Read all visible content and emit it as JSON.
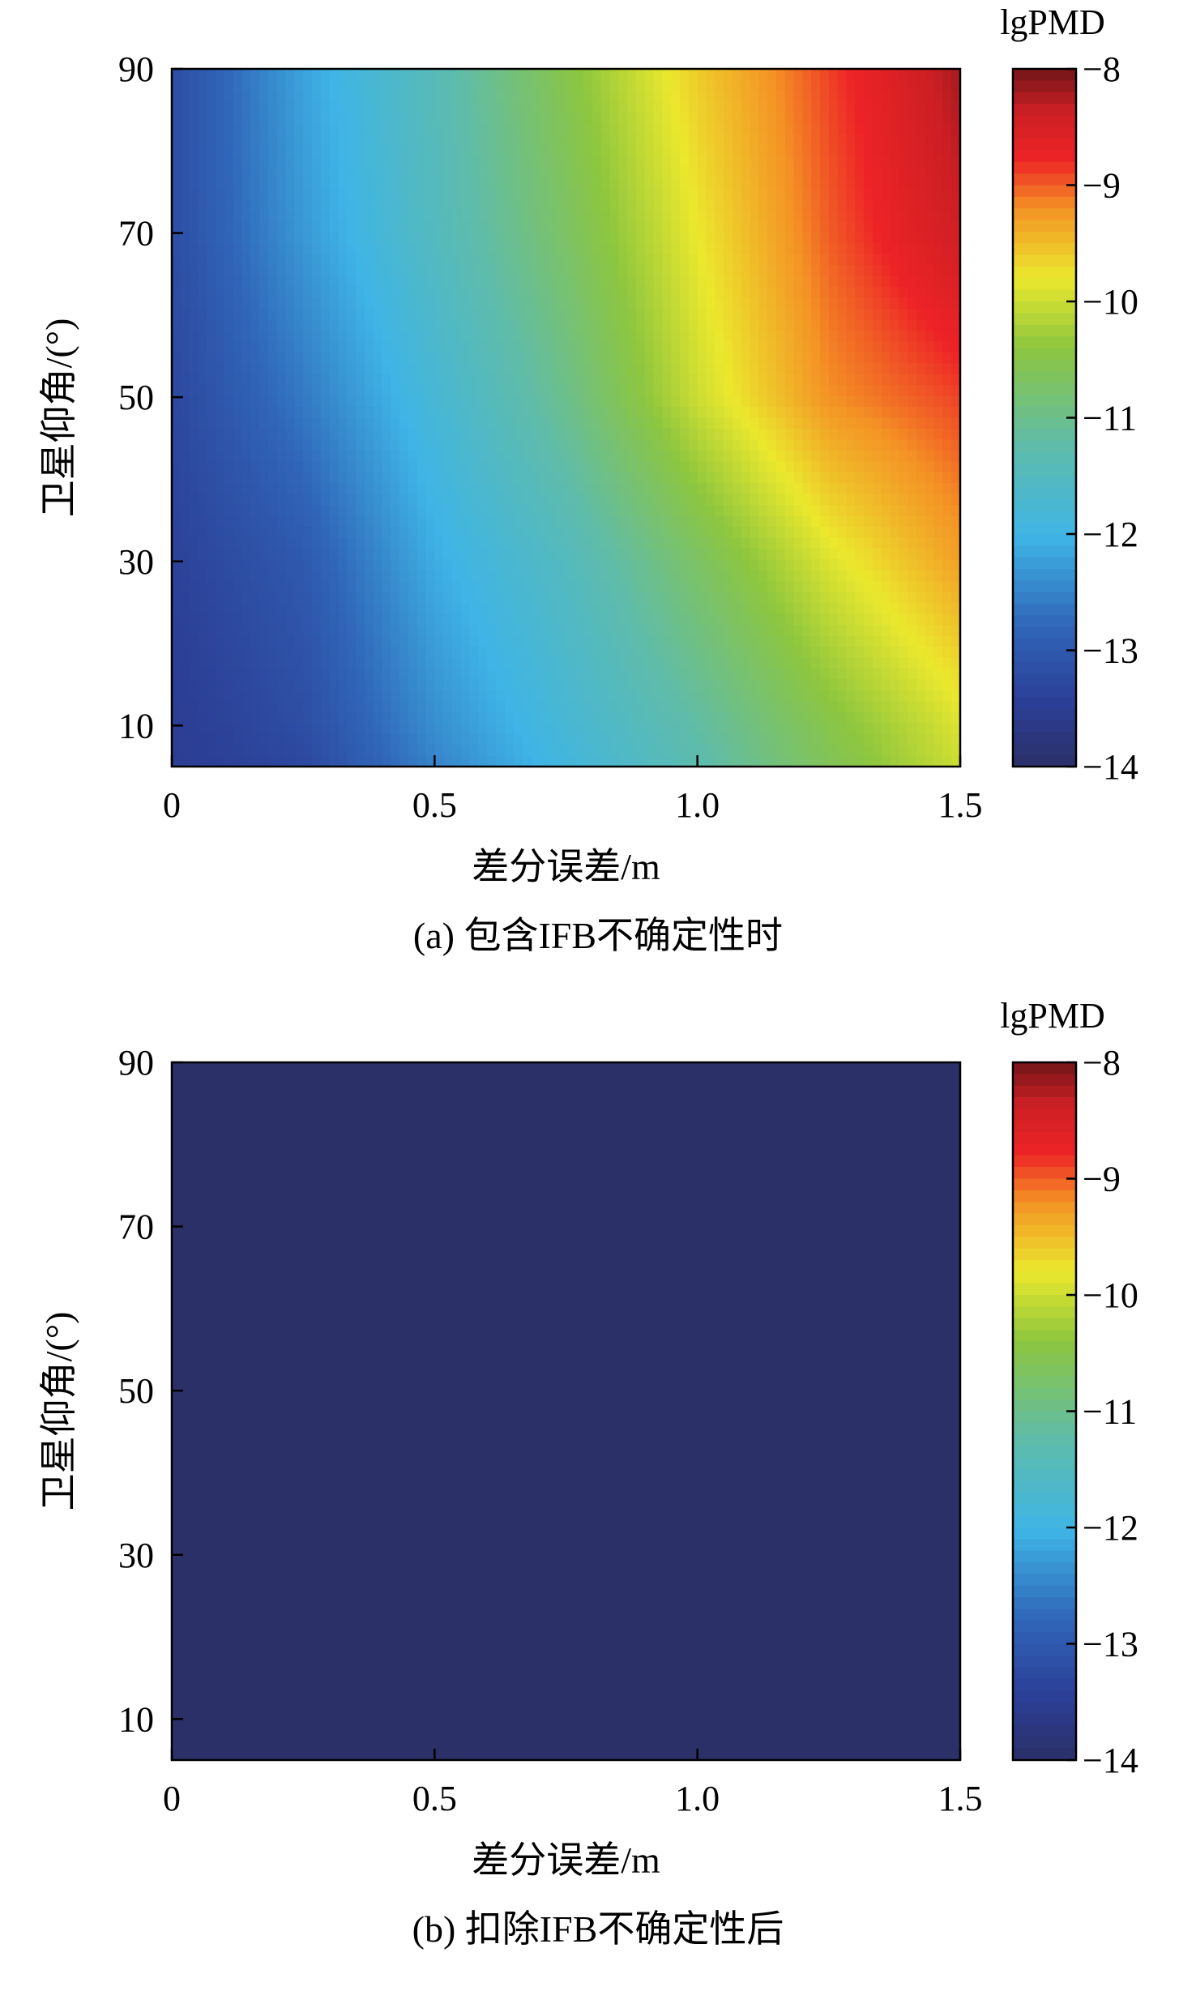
{
  "chart_data": [
    {
      "type": "heatmap",
      "panel_label": "(a) 包含IFB不确定性时",
      "xlabel": "差分误差/m",
      "ylabel": "卫星仰角/(°)",
      "colorbar_label": "lgPMD",
      "xlim": [
        0,
        1.5
      ],
      "ylim": [
        5,
        90
      ],
      "xticks": [
        0,
        0.5,
        1.0,
        1.5
      ],
      "xtick_labels": [
        "0",
        "0.5",
        "1.0",
        "1.5"
      ],
      "yticks": [
        10,
        30,
        50,
        70,
        90
      ],
      "ytick_labels": [
        "10",
        "30",
        "50",
        "70",
        "90"
      ],
      "clim": [
        -14,
        -8
      ],
      "cticks": [
        -14,
        -13,
        -12,
        -11,
        -10,
        -9,
        -8
      ],
      "ctick_labels": [
        "−14",
        "−13",
        "−12",
        "−11",
        "−10",
        "−9",
        "−8"
      ],
      "colormap": "jet",
      "elevations": [
        90,
        70,
        50,
        30,
        10,
        5
      ],
      "field_description_rows": [
        {
          "elevation": 90,
          "x": [
            0,
            0.25,
            0.5,
            0.75,
            1.0,
            1.25,
            1.5
          ],
          "lgPMD": [
            -13.2,
            -12.2,
            -11.4,
            -10.5,
            -9.6,
            -8.9,
            -8.2
          ]
        },
        {
          "elevation": 70,
          "x": [
            0,
            0.25,
            0.5,
            0.75,
            1.0,
            1.25,
            1.5
          ],
          "lgPMD": [
            -13.2,
            -12.3,
            -11.5,
            -10.7,
            -9.8,
            -9.0,
            -8.4
          ]
        },
        {
          "elevation": 50,
          "x": [
            0,
            0.25,
            0.5,
            0.75,
            1.0,
            1.25,
            1.5
          ],
          "lgPMD": [
            -13.3,
            -12.6,
            -11.8,
            -11.0,
            -10.0,
            -9.2,
            -8.9
          ]
        },
        {
          "elevation": 30,
          "x": [
            0,
            0.25,
            0.5,
            0.75,
            1.0,
            1.25,
            1.5
          ],
          "lgPMD": [
            -13.4,
            -13.0,
            -12.1,
            -11.5,
            -10.7,
            -9.9,
            -9.3
          ]
        },
        {
          "elevation": 10,
          "x": [
            0,
            0.25,
            0.5,
            0.75,
            1.0,
            1.25,
            1.5
          ],
          "lgPMD": [
            -13.5,
            -13.2,
            -12.4,
            -11.8,
            -11.2,
            -10.5,
            -9.9
          ]
        },
        {
          "elevation": 5,
          "x": [
            0,
            0.25,
            0.5,
            0.75,
            1.0,
            1.25,
            1.5
          ],
          "lgPMD": [
            -13.5,
            -13.3,
            -12.5,
            -11.9,
            -11.3,
            -10.6,
            -10.0
          ]
        }
      ]
    },
    {
      "type": "heatmap",
      "panel_label": "(b) 扣除IFB不确定性后",
      "xlabel": "差分误差/m",
      "ylabel": "卫星仰角/(°)",
      "colorbar_label": "lgPMD",
      "xlim": [
        0,
        1.5
      ],
      "ylim": [
        5,
        90
      ],
      "xticks": [
        0,
        0.5,
        1.0,
        1.5
      ],
      "xtick_labels": [
        "0",
        "0.5",
        "1.0",
        "1.5"
      ],
      "yticks": [
        10,
        30,
        50,
        70,
        90
      ],
      "ytick_labels": [
        "10",
        "30",
        "50",
        "70",
        "90"
      ],
      "clim": [
        -14,
        -8
      ],
      "cticks": [
        -14,
        -13,
        -12,
        -11,
        -10,
        -9,
        -8
      ],
      "ctick_labels": [
        "−14",
        "−13",
        "−12",
        "−11",
        "−10",
        "−9",
        "−8"
      ],
      "colormap": "jet",
      "uniform_value": -14
    }
  ]
}
